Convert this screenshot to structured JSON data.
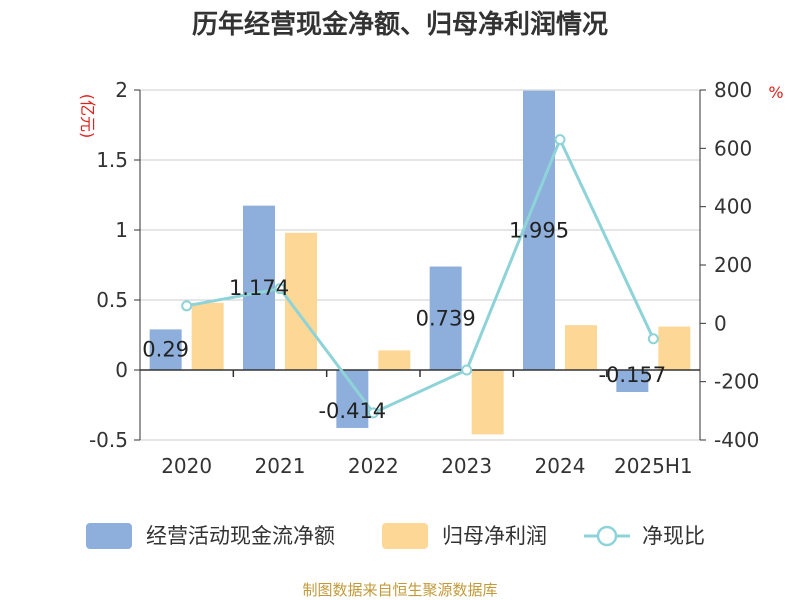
{
  "title": "历年经营现金净额、归母净利润情况",
  "source": "制图数据来自恒生聚源数据库",
  "chart_data": {
    "type": "bar",
    "categories": [
      "2020",
      "2021",
      "2022",
      "2023",
      "2024",
      "2025H1"
    ],
    "series": [
      {
        "name": "经营活动现金流净额",
        "type": "bar",
        "axis": "left",
        "color": "#8eafdc",
        "values": [
          0.29,
          1.174,
          -0.414,
          0.739,
          1.995,
          -0.157
        ],
        "labels": [
          "0.29",
          "1.174",
          "-0.414",
          "0.739",
          "1.995",
          "-0.157"
        ]
      },
      {
        "name": "归母净利润",
        "type": "bar",
        "axis": "left",
        "color": "#fdd795",
        "values": [
          0.48,
          0.98,
          0.14,
          -0.46,
          0.32,
          0.31
        ]
      },
      {
        "name": "净现比",
        "type": "line",
        "axis": "right",
        "color": "#8dd3d8",
        "values": [
          60,
          119,
          -307,
          -160,
          630,
          -53
        ]
      }
    ],
    "left_axis": {
      "unit": "(亿元)",
      "min": -0.5,
      "max": 2,
      "ticks": [
        "-0.5",
        "0",
        "0.5",
        "1",
        "1.5",
        "2"
      ]
    },
    "right_axis": {
      "unit": "%",
      "min": -400,
      "max": 800,
      "ticks": [
        "-400",
        "-200",
        "0",
        "200",
        "400",
        "600",
        "800"
      ]
    },
    "grid": true,
    "legend_position": "bottom"
  }
}
